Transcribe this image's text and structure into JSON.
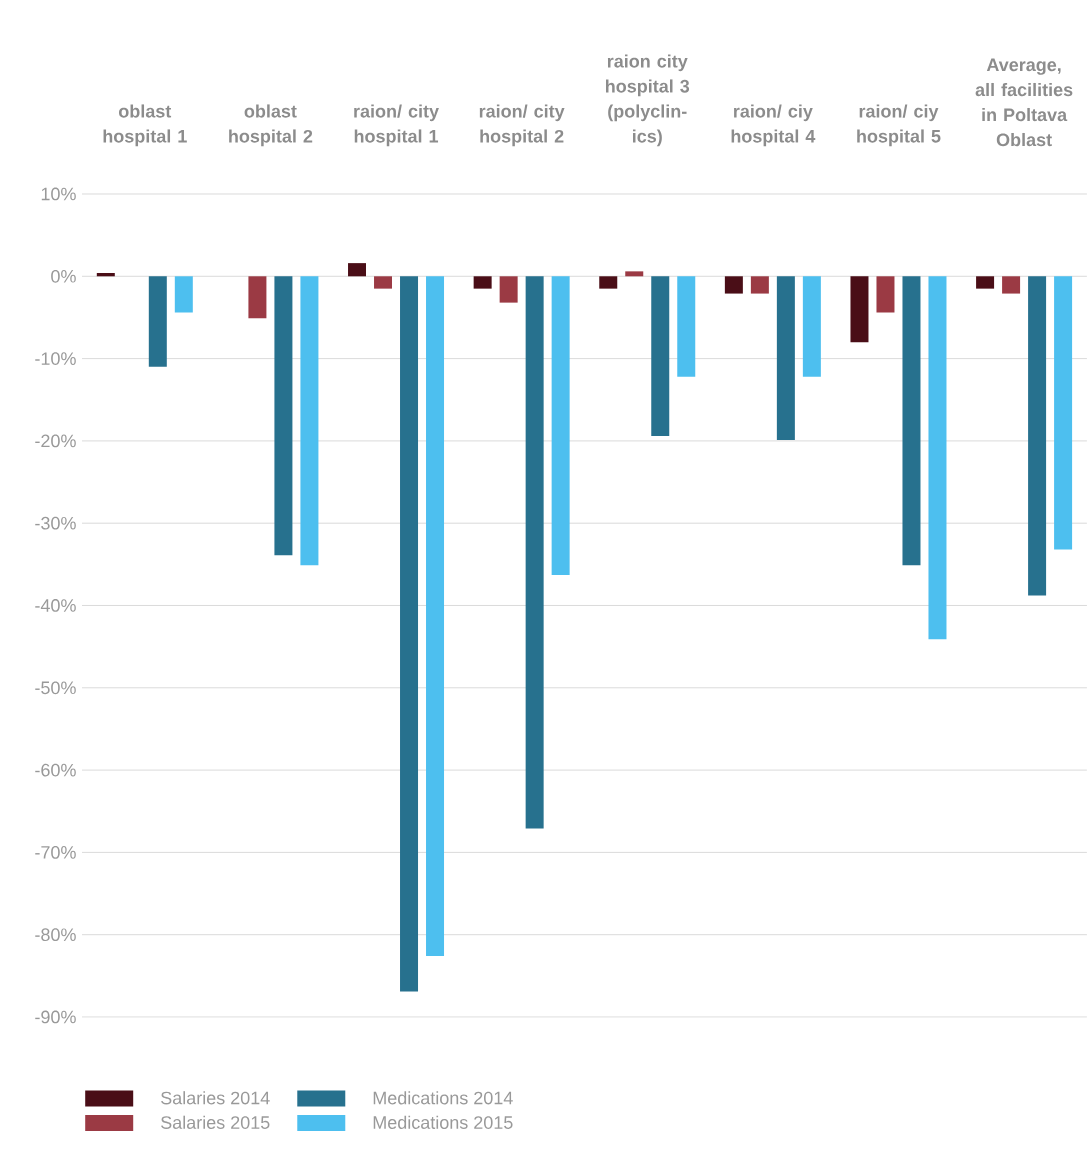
{
  "chart_data": {
    "type": "bar",
    "categories": [
      "oblast hospital 1",
      "oblast hospital 2",
      "raion/ city hospital 1",
      "raion/ city hospital 2",
      "raion city hospital 3 (polyclin-ics)",
      "raion/ ciy hospital 4",
      "raion/ ciy hospital 5",
      "Average, all facilities in Poltava Oblast"
    ],
    "series": [
      {
        "name": "Salaries 2014",
        "color": "#4a0e17",
        "values": [
          0.4,
          0,
          1.6,
          -1.5,
          -1.5,
          -2.1,
          -8.0,
          -1.5
        ]
      },
      {
        "name": "Salaries 2015",
        "color": "#9b3a44",
        "values": [
          0,
          -5.1,
          -1.5,
          -3.2,
          0.6,
          -2.1,
          -4.4,
          -2.1
        ]
      },
      {
        "name": "Medications 2014",
        "color": "#27718e",
        "values": [
          -11.0,
          -33.9,
          -86.9,
          -67.1,
          -19.4,
          -19.9,
          -35.1,
          -38.8
        ]
      },
      {
        "name": "Medications 2015",
        "color": "#4dbfef",
        "values": [
          -4.4,
          -35.1,
          -82.6,
          -36.3,
          -12.2,
          -12.2,
          -44.1,
          -33.2
        ]
      }
    ],
    "ylim": [
      -90,
      10
    ],
    "yticks": [
      {
        "value": 10,
        "label": "10%"
      },
      {
        "value": 0,
        "label": "0%"
      },
      {
        "value": -10,
        "label": "-10%"
      },
      {
        "value": -20,
        "label": "-20%"
      },
      {
        "value": -30,
        "label": "-30%"
      },
      {
        "value": -40,
        "label": "-40%"
      },
      {
        "value": -50,
        "label": "-50%"
      },
      {
        "value": -60,
        "label": "-60%"
      },
      {
        "value": -70,
        "label": "-70%"
      },
      {
        "value": -80,
        "label": "-80%"
      },
      {
        "value": -90,
        "label": "-90%"
      }
    ],
    "grid": "y",
    "legend": "bottom"
  }
}
